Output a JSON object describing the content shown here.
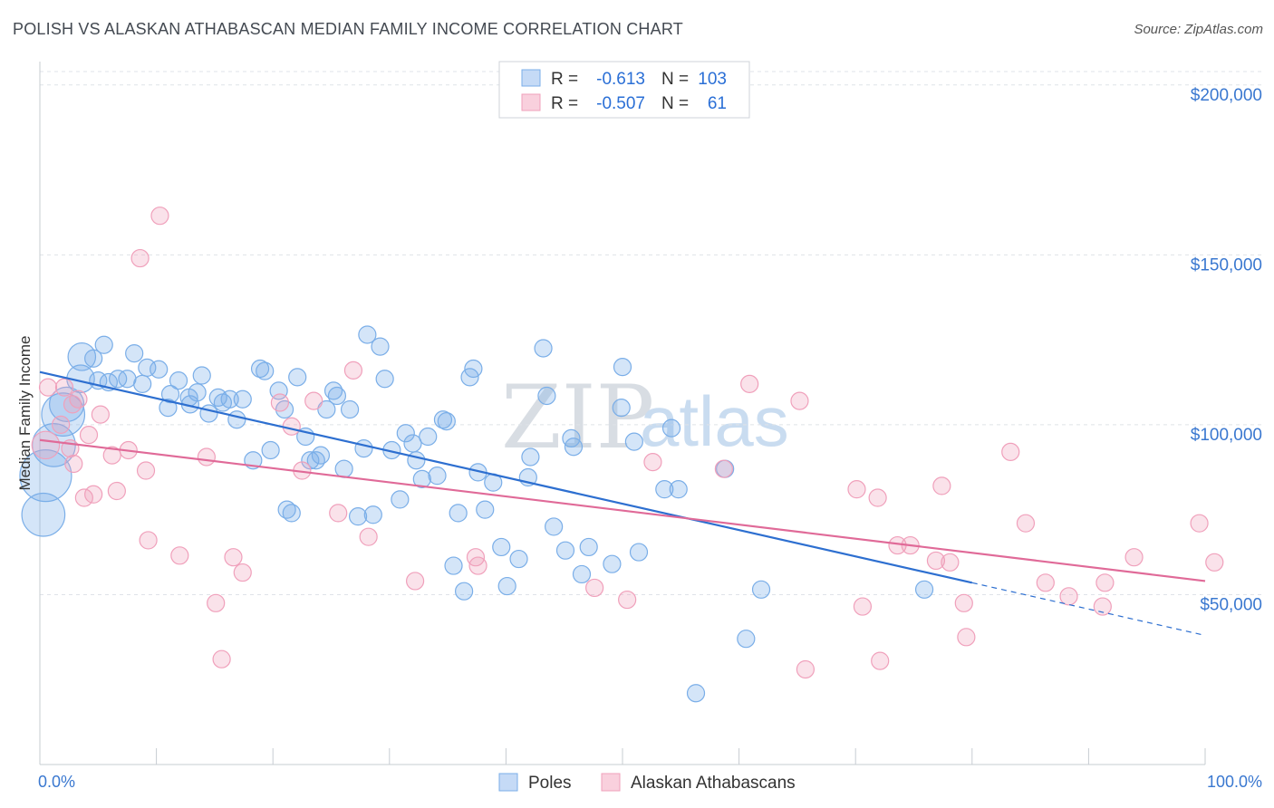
{
  "title": "POLISH VS ALASKAN ATHABASCAN MEDIAN FAMILY INCOME CORRELATION CHART",
  "source": "Source: ZipAtlas.com",
  "watermark": {
    "zip": "ZIP",
    "atlas": "atlas"
  },
  "stats": [
    {
      "r_label": "R =",
      "r_value": "-0.613",
      "n_label": "N =",
      "n_value": "103",
      "color": "#7aaee8"
    },
    {
      "r_label": "R =",
      "r_value": "-0.507",
      "n_label": "N =",
      "n_value": "61",
      "color": "#f0a0bb"
    }
  ],
  "legend": [
    {
      "label": "Poles",
      "color": "#7aaee8"
    },
    {
      "label": "Alaskan Athabascans",
      "color": "#f0a0bb"
    }
  ],
  "chart_data": {
    "type": "scatter",
    "title": "POLISH VS ALASKAN ATHABASCAN MEDIAN FAMILY INCOME CORRELATION CHART",
    "xlabel": "",
    "ylabel": "Median Family Income",
    "xlim": [
      0,
      100
    ],
    "ylim": [
      0,
      205000
    ],
    "x_tick_labels": [
      "0.0%",
      "100.0%"
    ],
    "y_ticks": [
      {
        "value": 50000,
        "label": "$50,000"
      },
      {
        "value": 100000,
        "label": "$100,000"
      },
      {
        "value": 150000,
        "label": "$150,000"
      },
      {
        "value": 200000,
        "label": "$200,000"
      }
    ],
    "grid": "horizontal-dashed",
    "legend_position": "bottom",
    "series": [
      {
        "name": "Poles",
        "color": "#7aaee8",
        "line_color": "#2d6fd0",
        "trend": {
          "x_start": 0,
          "y_start": 115500,
          "x_end": 80,
          "y_end": 53500,
          "dash_to_x": 100,
          "dash_to_y": 38000
        },
        "points": [
          [
            0.5,
            85000,
            3
          ],
          [
            0.3,
            73500,
            2.5
          ],
          [
            1.2,
            94000,
            2.5
          ],
          [
            2,
            103000,
            2.5
          ],
          [
            2.3,
            106000,
            2
          ],
          [
            3.5,
            113500,
            1.6
          ],
          [
            3.6,
            120000,
            1.6
          ],
          [
            4.6,
            119500,
            1
          ],
          [
            5,
            113000,
            1
          ],
          [
            5.5,
            123500,
            1
          ],
          [
            5.9,
            112500,
            1
          ],
          [
            6.7,
            113500,
            1
          ],
          [
            7.5,
            113500,
            1
          ],
          [
            8.1,
            121000,
            1
          ],
          [
            8.8,
            112000,
            1
          ],
          [
            9.2,
            116800,
            1
          ],
          [
            10.2,
            116300,
            1
          ],
          [
            11,
            105000,
            1
          ],
          [
            11.2,
            109000,
            1
          ],
          [
            11.9,
            113000,
            1
          ],
          [
            12.8,
            108000,
            1
          ],
          [
            12.9,
            106000,
            1
          ],
          [
            13.5,
            109500,
            1
          ],
          [
            13.9,
            114500,
            1
          ],
          [
            14.5,
            103300,
            1
          ],
          [
            15.3,
            108000,
            1
          ],
          [
            15.7,
            106500,
            1
          ],
          [
            16.3,
            107500,
            1
          ],
          [
            16.9,
            101500,
            1
          ],
          [
            17.4,
            107500,
            1
          ],
          [
            18.3,
            89500,
            1
          ],
          [
            18.9,
            116500,
            1
          ],
          [
            19.3,
            115800,
            1
          ],
          [
            19.8,
            92500,
            1
          ],
          [
            20.5,
            110000,
            1
          ],
          [
            21,
            104500,
            1
          ],
          [
            21.2,
            75000,
            1
          ],
          [
            21.6,
            74000,
            1
          ],
          [
            22.1,
            114000,
            1
          ],
          [
            22.8,
            96500,
            1
          ],
          [
            23.2,
            89500,
            1
          ],
          [
            23.7,
            89500,
            1
          ],
          [
            24.1,
            91000,
            1
          ],
          [
            24.6,
            104500,
            1
          ],
          [
            25.2,
            110000,
            1
          ],
          [
            25.5,
            108500,
            1
          ],
          [
            26.1,
            87000,
            1
          ],
          [
            26.6,
            104500,
            1
          ],
          [
            27.3,
            73000,
            1
          ],
          [
            27.8,
            93000,
            1
          ],
          [
            28.1,
            126500,
            1
          ],
          [
            28.6,
            73500,
            1
          ],
          [
            29.2,
            123000,
            1
          ],
          [
            29.6,
            113500,
            1
          ],
          [
            30.2,
            92500,
            1
          ],
          [
            30.9,
            78000,
            1
          ],
          [
            31.4,
            97500,
            1
          ],
          [
            32,
            94500,
            1
          ],
          [
            32.3,
            89500,
            1
          ],
          [
            32.8,
            84000,
            1
          ],
          [
            33.3,
            96500,
            1
          ],
          [
            34.1,
            85000,
            1
          ],
          [
            34.6,
            101500,
            1
          ],
          [
            34.9,
            101000,
            1
          ],
          [
            35.5,
            58500,
            1
          ],
          [
            35.9,
            74000,
            1
          ],
          [
            36.4,
            51000,
            1
          ],
          [
            36.9,
            114000,
            1
          ],
          [
            37.2,
            116500,
            1
          ],
          [
            37.6,
            86000,
            1
          ],
          [
            38.2,
            75000,
            1
          ],
          [
            38.9,
            83000,
            1
          ],
          [
            39.6,
            64000,
            1
          ],
          [
            40.1,
            52500,
            1
          ],
          [
            41.1,
            60500,
            1
          ],
          [
            41.9,
            84500,
            1
          ],
          [
            42.1,
            90500,
            1
          ],
          [
            43.2,
            122500,
            1
          ],
          [
            43.5,
            108500,
            1
          ],
          [
            44.1,
            70000,
            1
          ],
          [
            45.1,
            63000,
            1
          ],
          [
            45.6,
            96000,
            1
          ],
          [
            45.8,
            93500,
            1
          ],
          [
            46.5,
            56000,
            1
          ],
          [
            47.1,
            64000,
            1
          ],
          [
            49.1,
            59000,
            1
          ],
          [
            50,
            117000,
            1
          ],
          [
            49.9,
            105000,
            1
          ],
          [
            51,
            95000,
            1
          ],
          [
            51.4,
            62500,
            1
          ],
          [
            53.6,
            81000,
            1
          ],
          [
            54.2,
            99000,
            1
          ],
          [
            54.8,
            81000,
            1
          ],
          [
            56.3,
            21000,
            1
          ],
          [
            58.8,
            87000,
            1
          ],
          [
            60.6,
            37000,
            1
          ],
          [
            61.9,
            51500,
            1
          ],
          [
            75.9,
            51500,
            1
          ]
        ]
      },
      {
        "name": "Alaskan Athabascans",
        "color": "#f0a0bb",
        "line_color": "#e06a98",
        "trend": {
          "x_start": 0,
          "y_start": 95500,
          "x_end": 100,
          "y_end": 54000
        },
        "points": [
          [
            0.5,
            94000,
            1.6
          ],
          [
            0.7,
            111000,
            1
          ],
          [
            1.8,
            100000,
            1
          ],
          [
            2.1,
            111000,
            1
          ],
          [
            2.6,
            93000,
            1
          ],
          [
            2.8,
            106000,
            1
          ],
          [
            2.9,
            88500,
            1
          ],
          [
            3.3,
            107500,
            1
          ],
          [
            3.8,
            78500,
            1
          ],
          [
            4.2,
            97000,
            1
          ],
          [
            4.6,
            79500,
            1
          ],
          [
            5.2,
            103000,
            1
          ],
          [
            6.2,
            91000,
            1
          ],
          [
            6.6,
            80500,
            1
          ],
          [
            7.6,
            92500,
            1
          ],
          [
            8.6,
            149000,
            1
          ],
          [
            9.1,
            86500,
            1
          ],
          [
            9.3,
            66000,
            1
          ],
          [
            10.3,
            161500,
            1
          ],
          [
            12,
            61500,
            1
          ],
          [
            14.3,
            90500,
            1
          ],
          [
            15.1,
            47500,
            1
          ],
          [
            15.6,
            31000,
            1
          ],
          [
            16.6,
            61000,
            1
          ],
          [
            17.4,
            56500,
            1
          ],
          [
            20.6,
            106500,
            1
          ],
          [
            21.6,
            99500,
            1
          ],
          [
            22.5,
            86500,
            1
          ],
          [
            23.5,
            107000,
            1
          ],
          [
            25.6,
            74000,
            1
          ],
          [
            26.9,
            116000,
            1
          ],
          [
            28.2,
            67000,
            1
          ],
          [
            32.2,
            54000,
            1
          ],
          [
            37.4,
            61000,
            1
          ],
          [
            37.6,
            58500,
            1
          ],
          [
            47.6,
            52000,
            1
          ],
          [
            50.4,
            48500,
            1
          ],
          [
            52.6,
            89000,
            1
          ],
          [
            58.7,
            87000,
            1
          ],
          [
            60.9,
            112000,
            1
          ],
          [
            65.2,
            107000,
            1
          ],
          [
            65.7,
            28000,
            1
          ],
          [
            70.1,
            81000,
            1
          ],
          [
            70.6,
            46500,
            1
          ],
          [
            71.9,
            78500,
            1
          ],
          [
            72.1,
            30500,
            1
          ],
          [
            73.6,
            64500,
            1
          ],
          [
            74.7,
            64500,
            1
          ],
          [
            76.9,
            60000,
            1
          ],
          [
            77.4,
            82000,
            1
          ],
          [
            78.1,
            59500,
            1
          ],
          [
            79.3,
            47500,
            1
          ],
          [
            79.5,
            37500,
            1
          ],
          [
            83.3,
            92000,
            1
          ],
          [
            84.6,
            71000,
            1
          ],
          [
            86.3,
            53500,
            1
          ],
          [
            88.3,
            49500,
            1
          ],
          [
            91.2,
            46500,
            1
          ],
          [
            91.4,
            53500,
            1
          ],
          [
            93.9,
            61000,
            1
          ],
          [
            99.5,
            71000,
            1
          ],
          [
            100.8,
            59500,
            1
          ]
        ]
      }
    ]
  }
}
